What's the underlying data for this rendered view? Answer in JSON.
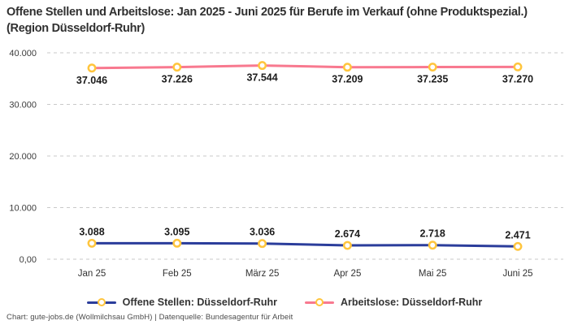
{
  "title": "Offene Stellen und Arbeitslose: Jan 2025 - Juni 2025 für Berufe im Verkauf (ohne Produktspezial.) (Region Düsseldorf-Ruhr)",
  "footer": "Chart: gute-jobs.de (Wollmilchsau GmbH) | Datenquelle: Bundesagentur für Arbeit",
  "colors": {
    "background": "#ffffff",
    "title_text": "#303030",
    "axis_text": "#333333",
    "grid_line": "#c9c9c9",
    "data_label_text": "#1c1c1c",
    "footer_text": "#4a4a4a",
    "marker_ring": "#ffc53d",
    "marker_fill": "#ffffff",
    "series_open_positions": "#2b3d9b",
    "series_unemployed": "#f8798f"
  },
  "chart_data": {
    "type": "line",
    "title": "Offene Stellen und Arbeitslose: Jan 2025 - Juni 2025 für Berufe im Verkauf (ohne Produktspezial.) (Region Düsseldorf-Ruhr)",
    "categories": [
      "Jan 25",
      "Feb 25",
      "März 25",
      "Apr 25",
      "Mai 25",
      "Juni 25"
    ],
    "series": [
      {
        "name": "Offene Stellen: Düsseldorf-Ruhr",
        "color": "#2b3d9b",
        "values": [
          3088,
          3095,
          3036,
          2674,
          2718,
          2471
        ],
        "value_labels": [
          "3.088",
          "3.095",
          "3.036",
          "2.674",
          "2.718",
          "2.471"
        ],
        "label_position": "above"
      },
      {
        "name": "Arbeitslose: Düsseldorf-Ruhr",
        "color": "#f8798f",
        "values": [
          37046,
          37226,
          37544,
          37209,
          37235,
          37270
        ],
        "value_labels": [
          "37.046",
          "37.226",
          "37.544",
          "37.209",
          "37.235",
          "37.270"
        ],
        "label_position": "below"
      }
    ],
    "y_ticks": [
      {
        "value": 0,
        "label": "0,00"
      },
      {
        "value": 10000,
        "label": "10.000"
      },
      {
        "value": 20000,
        "label": "20.000"
      },
      {
        "value": 30000,
        "label": "30.000"
      },
      {
        "value": 40000,
        "label": "40.000"
      }
    ],
    "ylim": [
      0,
      40000
    ],
    "xlabel": "",
    "ylabel": "",
    "grid": "horizontal-dashed",
    "legend_position": "bottom",
    "marker_style": {
      "ring_color": "#ffc53d",
      "fill_color": "#ffffff"
    }
  }
}
